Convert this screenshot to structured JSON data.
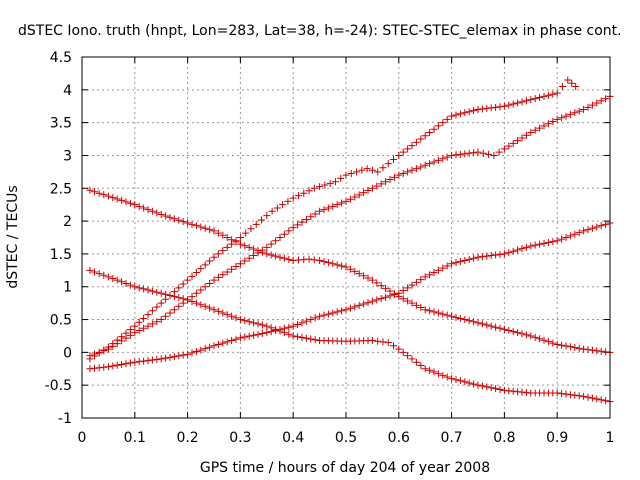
{
  "chart_data": {
    "type": "scatter",
    "title": "dSTEC Iono. truth (hnpt, Lon=283, Lat=38, h=-24): STEC-STEC_elemax in phase cont.",
    "xlabel": "GPS time / hours of day 204 of year 2008",
    "ylabel": "dSTEC  / TECUs",
    "xlim": [
      0,
      1
    ],
    "ylim": [
      -1,
      4.5
    ],
    "xticks": [
      "0",
      "0.1",
      "0.2",
      "0.3",
      "0.4",
      "0.5",
      "0.6",
      "0.7",
      "0.8",
      "0.9",
      "1"
    ],
    "yticks": [
      "-1",
      "-0.5",
      "0",
      "0.5",
      "1",
      "1.5",
      "2",
      "2.5",
      "3",
      "3.5",
      "4",
      "4.5"
    ],
    "xtick_values": [
      0,
      0.1,
      0.2,
      0.3,
      0.4,
      0.5,
      0.6,
      0.7,
      0.8,
      0.9,
      1
    ],
    "ytick_values": [
      -1,
      -0.5,
      0,
      0.5,
      1,
      1.5,
      2,
      2.5,
      3,
      3.5,
      4,
      4.5
    ],
    "grid": true,
    "marker": "+",
    "color": "#cc0000",
    "series": [
      {
        "values": [
          [
            0.015,
            -0.1
          ],
          [
            0.05,
            0.08
          ],
          [
            0.1,
            0.4
          ],
          [
            0.15,
            0.75
          ],
          [
            0.2,
            1.1
          ],
          [
            0.25,
            1.45
          ],
          [
            0.3,
            1.75
          ],
          [
            0.33,
            1.95
          ],
          [
            0.36,
            2.15
          ],
          [
            0.4,
            2.35
          ],
          [
            0.44,
            2.5
          ],
          [
            0.48,
            2.6
          ],
          [
            0.5,
            2.7
          ],
          [
            0.54,
            2.8
          ],
          [
            0.56,
            2.75
          ],
          [
            0.6,
            3.0
          ],
          [
            0.65,
            3.3
          ],
          [
            0.7,
            3.6
          ],
          [
            0.75,
            3.7
          ],
          [
            0.8,
            3.75
          ],
          [
            0.85,
            3.85
          ],
          [
            0.9,
            3.95
          ],
          [
            0.92,
            4.15
          ],
          [
            0.935,
            4.05
          ]
        ]
      },
      {
        "values": [
          [
            0.015,
            -0.05
          ],
          [
            0.05,
            0.05
          ],
          [
            0.1,
            0.3
          ],
          [
            0.15,
            0.5
          ],
          [
            0.2,
            0.8
          ],
          [
            0.25,
            1.1
          ],
          [
            0.3,
            1.35
          ],
          [
            0.35,
            1.6
          ],
          [
            0.4,
            1.9
          ],
          [
            0.45,
            2.15
          ],
          [
            0.5,
            2.3
          ],
          [
            0.55,
            2.5
          ],
          [
            0.6,
            2.7
          ],
          [
            0.65,
            2.85
          ],
          [
            0.7,
            3.0
          ],
          [
            0.75,
            3.05
          ],
          [
            0.78,
            3.0
          ],
          [
            0.8,
            3.1
          ],
          [
            0.85,
            3.35
          ],
          [
            0.9,
            3.55
          ],
          [
            0.95,
            3.7
          ],
          [
            1.0,
            3.9
          ]
        ]
      },
      {
        "values": [
          [
            0.015,
            2.47
          ],
          [
            0.05,
            2.38
          ],
          [
            0.1,
            2.25
          ],
          [
            0.15,
            2.1
          ],
          [
            0.2,
            1.97
          ],
          [
            0.25,
            1.85
          ],
          [
            0.3,
            1.65
          ],
          [
            0.35,
            1.5
          ],
          [
            0.4,
            1.4
          ],
          [
            0.43,
            1.42
          ],
          [
            0.45,
            1.4
          ],
          [
            0.5,
            1.3
          ],
          [
            0.55,
            1.1
          ],
          [
            0.6,
            0.85
          ],
          [
            0.65,
            0.65
          ],
          [
            0.7,
            0.55
          ],
          [
            0.75,
            0.45
          ],
          [
            0.8,
            0.35
          ],
          [
            0.85,
            0.25
          ],
          [
            0.9,
            0.12
          ],
          [
            0.95,
            0.05
          ],
          [
            1.0,
            0.0
          ]
        ]
      },
      {
        "values": [
          [
            0.015,
            1.25
          ],
          [
            0.05,
            1.15
          ],
          [
            0.1,
            1.0
          ],
          [
            0.15,
            0.9
          ],
          [
            0.2,
            0.8
          ],
          [
            0.25,
            0.65
          ],
          [
            0.3,
            0.5
          ],
          [
            0.35,
            0.4
          ],
          [
            0.4,
            0.25
          ],
          [
            0.45,
            0.18
          ],
          [
            0.5,
            0.17
          ],
          [
            0.55,
            0.18
          ],
          [
            0.58,
            0.15
          ],
          [
            0.6,
            0.05
          ],
          [
            0.65,
            -0.25
          ],
          [
            0.7,
            -0.4
          ],
          [
            0.75,
            -0.5
          ],
          [
            0.8,
            -0.58
          ],
          [
            0.85,
            -0.62
          ],
          [
            0.9,
            -0.62
          ],
          [
            0.95,
            -0.67
          ],
          [
            1.0,
            -0.75
          ]
        ]
      },
      {
        "values": [
          [
            0.015,
            -0.25
          ],
          [
            0.05,
            -0.22
          ],
          [
            0.1,
            -0.15
          ],
          [
            0.15,
            -0.1
          ],
          [
            0.2,
            -0.03
          ],
          [
            0.25,
            0.1
          ],
          [
            0.3,
            0.22
          ],
          [
            0.35,
            0.3
          ],
          [
            0.4,
            0.4
          ],
          [
            0.45,
            0.55
          ],
          [
            0.5,
            0.65
          ],
          [
            0.55,
            0.78
          ],
          [
            0.6,
            0.9
          ],
          [
            0.65,
            1.15
          ],
          [
            0.7,
            1.35
          ],
          [
            0.75,
            1.45
          ],
          [
            0.8,
            1.5
          ],
          [
            0.85,
            1.62
          ],
          [
            0.9,
            1.7
          ],
          [
            0.95,
            1.85
          ],
          [
            1.0,
            1.97
          ]
        ]
      }
    ]
  }
}
